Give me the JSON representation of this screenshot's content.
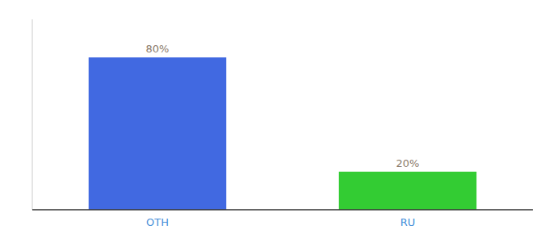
{
  "chart_data": {
    "type": "bar",
    "categories": [
      "OTH",
      "RU"
    ],
    "values": [
      80,
      20
    ],
    "value_labels": [
      "80%",
      "20%"
    ],
    "data_labels": true,
    "colors": [
      "#4169e1",
      "#33cc33"
    ],
    "ylim": [
      0,
      100
    ],
    "tick_labels": "x",
    "grid": false
  }
}
